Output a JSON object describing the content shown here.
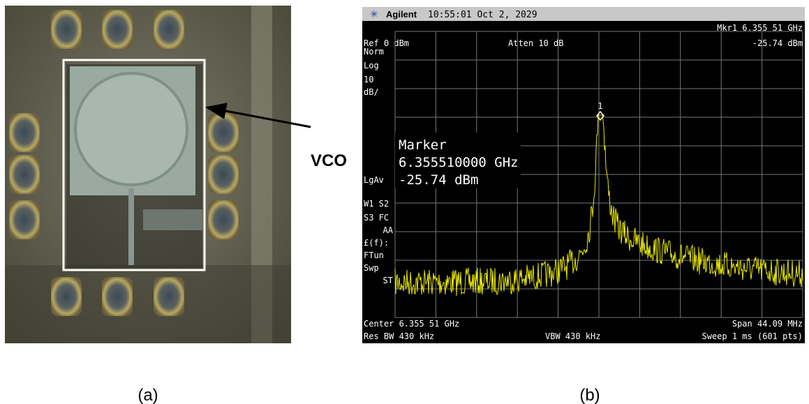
{
  "photo": {
    "label": "VCO"
  },
  "analyzer": {
    "brand": "Agilent",
    "timestamp": "10:55:01  Oct 2, 2029",
    "marker_header": "Mkr1  6.355 51 GHz",
    "ref": "Ref 0 dBm",
    "atten": "Atten 10 dB",
    "marker_level": "-25.74 dBm",
    "left_labels": [
      "Norm",
      "Log",
      "10",
      "dB/",
      "LgAv",
      "W1  S2",
      "S3  FC",
      "AA",
      "£(f):",
      "FTun",
      "Swp",
      "ST"
    ],
    "marker_box": {
      "title": "Marker",
      "frequency": "6.355510000 GHz",
      "level": "-25.74 dBm"
    },
    "peak_label": "1",
    "center": "Center 6.355 51 GHz",
    "span": "Span 44.09 MHz",
    "rbw": "Res BW 430 kHz",
    "vbw": "VBW 430 kHz",
    "sweep": "Sweep 1 ms (601 pts)"
  },
  "captions": [
    "(a)",
    "(b)"
  ]
}
